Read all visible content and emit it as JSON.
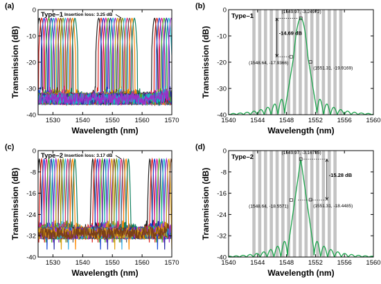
{
  "colors": {
    "spectrum": "#1aa34a",
    "band": "#c3c3c3",
    "frame": "#000000",
    "palette": [
      "#202020",
      "#e0201b",
      "#1848d8",
      "#e01890",
      "#4ab01e",
      "#2a2aa8",
      "#18b8c8",
      "#9a30c8",
      "#e0a010",
      "#7a4018",
      "#7a9a10",
      "#3ab0e8",
      "#e03070",
      "#606060",
      "#ff8800",
      "#108060"
    ]
  },
  "chart_data": [
    {
      "id": "a",
      "panel_label": "(a)",
      "type": "line",
      "title": "",
      "annotation_label": "Type–1",
      "insertion_loss": "Insertion loss: 3.25 dB",
      "xlabel": "Wavelength (nm)",
      "ylabel": "Transmission (dB)",
      "xlim": [
        1525,
        1570
      ],
      "ylim": [
        -40,
        0
      ],
      "xticks": [
        1530,
        1540,
        1550,
        1560,
        1570
      ],
      "yticks": [
        0,
        -10,
        -20,
        -30,
        -40
      ],
      "channel_spacing_nm": 0.8,
      "channel_groups": [
        {
          "centers": [
            1525.4,
            1526.2,
            1527.0,
            1527.8,
            1528.6,
            1529.4,
            1530.2,
            1531.0,
            1531.8,
            1532.6,
            1533.4,
            1534.2,
            1535.0,
            1535.8,
            1536.6,
            1537.4
          ]
        },
        {
          "centers": [
            1545.4,
            1546.2,
            1547.0,
            1547.8,
            1548.6,
            1549.4,
            1550.2,
            1551.0,
            1551.8,
            1552.6,
            1553.4,
            1554.2,
            1555.0,
            1555.8,
            1556.6,
            1557.4
          ]
        },
        {
          "centers": [
            1564.2,
            1565.0,
            1565.8,
            1566.6,
            1567.4,
            1568.2,
            1569.0,
            1569.8
          ]
        }
      ],
      "peak_db": -3.25,
      "floor_db": -34
    },
    {
      "id": "b",
      "panel_label": "(b)",
      "type": "line",
      "title": "",
      "annotation_label": "Type–1",
      "xlabel": "Wavelength (nm)",
      "ylabel": "Transmission (dB)",
      "xlim": [
        1540,
        1560
      ],
      "ylim": [
        -40,
        0
      ],
      "xticks": [
        1540,
        1544,
        1548,
        1552,
        1556,
        1560
      ],
      "yticks": [
        0,
        -10,
        -20,
        -30,
        -40
      ],
      "peak": {
        "x": 1549.97,
        "y": -3.24972,
        "label": "(1549.97, -3.24972)"
      },
      "points": [
        {
          "x": 1548.64,
          "y": -17.9366,
          "label": "(1548.64, -17.9366)"
        },
        {
          "x": 1551.31,
          "y": -19.9169,
          "label": "(1551.31, -19.9169)"
        }
      ],
      "isolation_label": "-14.69 dB",
      "bands": [
        1543.5,
        1544.3,
        1545.1,
        1545.9,
        1546.7,
        1547.5,
        1548.3,
        1549.1,
        1549.9,
        1550.7,
        1551.5,
        1552.3,
        1553.1,
        1553.9,
        1554.7,
        1555.5
      ],
      "floor_db": -40
    },
    {
      "id": "c",
      "panel_label": "(c)",
      "type": "line",
      "title": "",
      "annotation_label": "Type–2",
      "insertion_loss": "Insertion loss: 3.17 dB",
      "xlabel": "Wavelength (nm)",
      "ylabel": "Transmission (dB)",
      "xlim": [
        1525,
        1570
      ],
      "ylim": [
        -40,
        0
      ],
      "xticks": [
        1530,
        1540,
        1550,
        1560,
        1570
      ],
      "yticks": [
        0,
        -8,
        -16,
        -24,
        -32,
        -40
      ],
      "channel_spacing_nm": 0.8,
      "channel_groups": [
        {
          "centers": [
            1525.4,
            1526.2,
            1527.0,
            1527.8,
            1528.6,
            1529.4,
            1530.2,
            1531.0,
            1531.8,
            1532.6,
            1533.4,
            1534.2,
            1535.0,
            1535.8,
            1536.6,
            1537.4
          ]
        },
        {
          "centers": [
            1543.4,
            1544.2,
            1545.0,
            1545.8,
            1546.6,
            1547.4,
            1548.2,
            1549.0,
            1549.8,
            1550.6,
            1551.4,
            1552.2,
            1553.0,
            1553.8,
            1554.6,
            1555.4
          ]
        },
        {
          "centers": [
            1562.6,
            1563.4,
            1564.2,
            1565.0,
            1565.8,
            1566.6,
            1567.4,
            1568.2,
            1569.0,
            1569.8
          ]
        }
      ],
      "peak_db": -3.17,
      "floor_db": -37
    },
    {
      "id": "d",
      "panel_label": "(d)",
      "type": "line",
      "title": "",
      "annotation_label": "Type–2",
      "xlabel": "Wavelength (nm)",
      "ylabel": "Transmission (dB)",
      "xlim": [
        1540,
        1560
      ],
      "ylim": [
        -40,
        0
      ],
      "xticks": [
        1540,
        1544,
        1548,
        1552,
        1556,
        1560
      ],
      "yticks": [
        0,
        -8,
        -16,
        -24,
        -32,
        -40
      ],
      "peak": {
        "x": 1549.97,
        "y": -3.16735,
        "label": "(1549.97, -3.16735)"
      },
      "points": [
        {
          "x": 1548.64,
          "y": -18.5571,
          "label": "(1548.64, -18.5571)"
        },
        {
          "x": 1551.31,
          "y": -18.4485,
          "label": "(1551.31, -18.4485)"
        }
      ],
      "isolation_label": "-15.28 dB",
      "bands": [
        1543.5,
        1544.3,
        1545.1,
        1545.9,
        1546.7,
        1547.5,
        1548.3,
        1549.1,
        1549.9,
        1550.7,
        1551.5,
        1552.3,
        1553.1,
        1553.9,
        1554.7
      ],
      "floor_db": -40
    }
  ]
}
